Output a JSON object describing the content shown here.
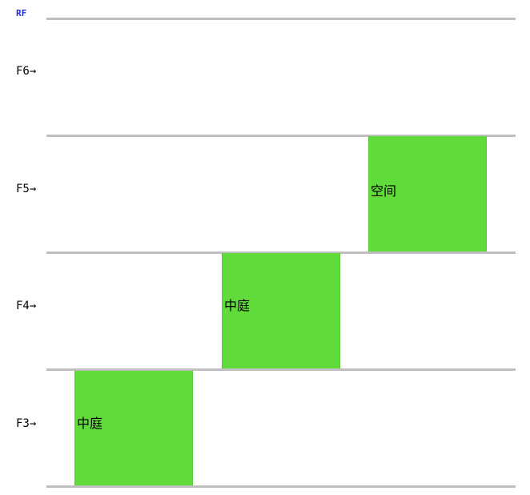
{
  "roof_label": "RF",
  "floors": {
    "f6": "F6→",
    "f5": "F5→",
    "f4": "F4→",
    "f3": "F3→"
  },
  "blocks": {
    "f5_block": {
      "label": "空间",
      "color": "#61da3c"
    },
    "f4_block": {
      "label": "中庭",
      "color": "#61da3c"
    },
    "f3_block": {
      "label": "中庭",
      "color": "#61da3c"
    }
  },
  "colors": {
    "floor_line": "#bfbfbf",
    "roof_label": "#1f2bd1",
    "block_fill": "#61da3c"
  }
}
